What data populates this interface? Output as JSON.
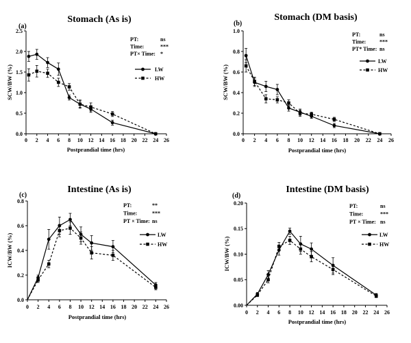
{
  "chart_data": [
    {
      "type": "line",
      "panel_label": "(a)",
      "title": "Stomach (As is)",
      "xlabel": "Postprandial time (hrs)",
      "ylabel": "SCW/BW (%)",
      "xlim": [
        0,
        26
      ],
      "ylim": [
        0,
        2.5
      ],
      "xticks": [
        "0",
        "2",
        "4",
        "6",
        "8",
        "10",
        "12",
        "14",
        "16",
        "18",
        "20",
        "22",
        "24",
        "26"
      ],
      "yticks": [
        "0.0",
        "0.5",
        "1.0",
        "1.5",
        "2.0",
        "2.5"
      ],
      "grid": false,
      "legend_position": "top-right",
      "stats": [
        {
          "label": "PT:",
          "value": "ns"
        },
        {
          "label": "Time:",
          "value": "***"
        },
        {
          "label": "PT× Time:",
          "value": "*"
        }
      ],
      "series": [
        {
          "name": "LW",
          "color": "#000000",
          "x": [
            0.5,
            2,
            4,
            6,
            8,
            10,
            12,
            16,
            24
          ],
          "values": [
            1.88,
            1.93,
            1.73,
            1.57,
            0.88,
            0.72,
            0.6,
            0.27,
            0.0
          ],
          "err": [
            0.12,
            0.12,
            0.12,
            0.15,
            0.06,
            0.1,
            0.08,
            0.06,
            0.0
          ]
        },
        {
          "name": "HW",
          "color": "#000000",
          "x": [
            0.5,
            2,
            4,
            6,
            8,
            10,
            12,
            16,
            24
          ],
          "values": [
            1.43,
            1.52,
            1.47,
            1.25,
            1.14,
            0.72,
            0.65,
            0.48,
            0.0
          ],
          "err": [
            0.15,
            0.14,
            0.1,
            0.1,
            0.08,
            0.08,
            0.1,
            0.06,
            0.0
          ]
        }
      ]
    },
    {
      "type": "line",
      "panel_label": "(b)",
      "title": "Stomach (DM basis)",
      "xlabel": "Postprandial time (hrs)",
      "ylabel": "SCW/BW (%)",
      "xlim": [
        0,
        26
      ],
      "ylim": [
        0,
        1.0
      ],
      "xticks": [
        "0",
        "2",
        "4",
        "6",
        "8",
        "10",
        "12",
        "14",
        "16",
        "18",
        "20",
        "22",
        "24",
        "26"
      ],
      "yticks": [
        "0.0",
        "0.2",
        "0.4",
        "0.6",
        "0.8",
        "1.0"
      ],
      "grid": false,
      "legend_position": "top-right",
      "stats": [
        {
          "label": "PT:",
          "value": "ns"
        },
        {
          "label": "Time:",
          "value": "***"
        },
        {
          "label": "PT* Time:",
          "value": "ns"
        }
      ],
      "series": [
        {
          "name": "LW",
          "color": "#000000",
          "x": [
            0.5,
            2,
            4,
            6,
            8,
            10,
            12,
            16,
            24
          ],
          "values": [
            0.76,
            0.5,
            0.46,
            0.43,
            0.25,
            0.21,
            0.17,
            0.08,
            0.0
          ],
          "err": [
            0.07,
            0.04,
            0.05,
            0.05,
            0.03,
            0.03,
            0.02,
            0.02,
            0.0
          ]
        },
        {
          "name": "HW",
          "color": "#000000",
          "x": [
            0.5,
            2,
            4,
            6,
            8,
            10,
            12,
            16,
            24
          ],
          "values": [
            0.66,
            0.51,
            0.34,
            0.33,
            0.3,
            0.2,
            0.19,
            0.14,
            0.0
          ],
          "err": [
            0.06,
            0.04,
            0.04,
            0.03,
            0.03,
            0.03,
            0.02,
            0.02,
            0.0
          ]
        }
      ]
    },
    {
      "type": "line",
      "panel_label": "(c)",
      "title": "Intestine (As is)",
      "xlabel": "Postprandial time (hrs)",
      "ylabel": "ICW/BW (%)",
      "xlim": [
        0,
        26
      ],
      "ylim": [
        0,
        0.8
      ],
      "xticks": [
        "0",
        "2",
        "4",
        "6",
        "8",
        "10",
        "12",
        "14",
        "16",
        "18",
        "20",
        "22",
        "24",
        "26"
      ],
      "yticks": [
        "0.0",
        "0.2",
        "0.4",
        "0.6",
        "0.8"
      ],
      "grid": false,
      "legend_position": "top-right",
      "stats": [
        {
          "label": "PT:",
          "value": "**"
        },
        {
          "label": "Time:",
          "value": "***"
        },
        {
          "label": "PT × Time:",
          "value": "ns"
        }
      ],
      "series": [
        {
          "name": "LW",
          "color": "#000000",
          "x": [
            0,
            2,
            4,
            6,
            8,
            10,
            12,
            16,
            24
          ],
          "values": [
            0,
            0.18,
            0.49,
            0.6,
            0.65,
            0.53,
            0.46,
            0.43,
            0.12
          ],
          "err": [
            0,
            0.02,
            0.08,
            0.07,
            0.05,
            0.06,
            0.06,
            0.05,
            0.02
          ]
        },
        {
          "name": "HW",
          "color": "#000000",
          "x": [
            0,
            2,
            4,
            6,
            8,
            10,
            12,
            16,
            24
          ],
          "values": [
            0,
            0.16,
            0.29,
            0.56,
            0.58,
            0.5,
            0.38,
            0.36,
            0.1
          ],
          "err": [
            0,
            0.02,
            0.03,
            0.05,
            0.05,
            0.05,
            0.05,
            0.04,
            0.02
          ]
        }
      ]
    },
    {
      "type": "line",
      "panel_label": "(d)",
      "title": "Intestine (DM basis)",
      "xlabel": "Postprandial time (hrs)",
      "ylabel": "ICW/BW (%)",
      "xlim": [
        0,
        26
      ],
      "ylim": [
        0,
        0.2
      ],
      "xticks": [
        "0",
        "2",
        "4",
        "6",
        "8",
        "10",
        "12",
        "14",
        "16",
        "18",
        "20",
        "22",
        "24",
        "26"
      ],
      "yticks": [
        "0.00",
        "0.05",
        "0.10",
        "0.15",
        "0.20"
      ],
      "grid": false,
      "legend_position": "top-right",
      "stats": [
        {
          "label": "PT:",
          "value": "ns"
        },
        {
          "label": "Time:",
          "value": "***"
        },
        {
          "label": "PT × Time:",
          "value": "ns"
        }
      ],
      "series": [
        {
          "name": "LW",
          "color": "#000000",
          "x": [
            0,
            2,
            4,
            6,
            8,
            10,
            12,
            16,
            24
          ],
          "values": [
            0,
            0.022,
            0.06,
            0.108,
            0.145,
            0.12,
            0.11,
            0.078,
            0.02
          ],
          "err": [
            0,
            0.003,
            0.008,
            0.01,
            0.006,
            0.015,
            0.012,
            0.015,
            0.003
          ]
        },
        {
          "name": "HW",
          "color": "#000000",
          "x": [
            0,
            2,
            4,
            6,
            8,
            10,
            12,
            16,
            24
          ],
          "values": [
            0,
            0.02,
            0.05,
            0.115,
            0.127,
            0.11,
            0.095,
            0.07,
            0.018
          ],
          "err": [
            0,
            0.003,
            0.006,
            0.008,
            0.008,
            0.01,
            0.01,
            0.01,
            0.003
          ]
        }
      ]
    }
  ]
}
